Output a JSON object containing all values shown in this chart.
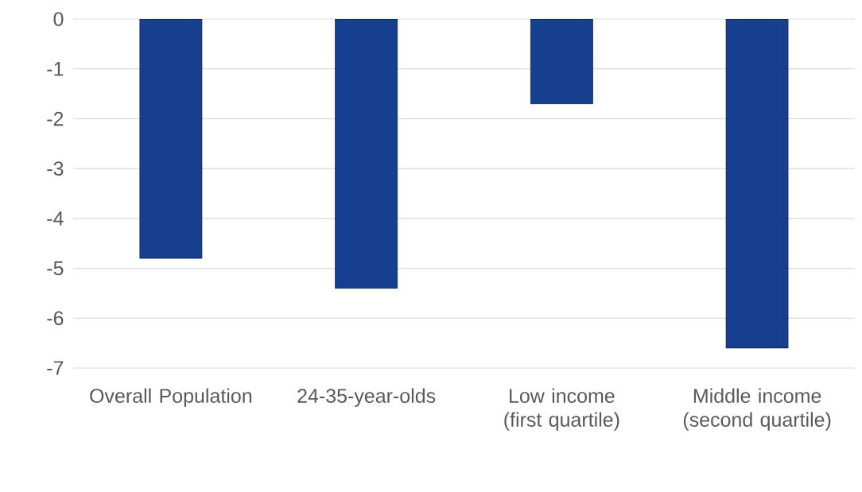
{
  "chart_data": {
    "type": "bar",
    "categories": [
      "Overall Population",
      "24-35-year-olds",
      "Low income (first quartile)",
      "Middle income (second quartile)"
    ],
    "values": [
      -4.8,
      -5.4,
      -1.7,
      -6.6
    ],
    "color": "#173f8f",
    "ylim": [
      -7,
      0
    ],
    "yticks": [
      -7,
      -6,
      -5,
      -4,
      -3,
      -2,
      -1,
      0
    ],
    "grid": "y"
  }
}
